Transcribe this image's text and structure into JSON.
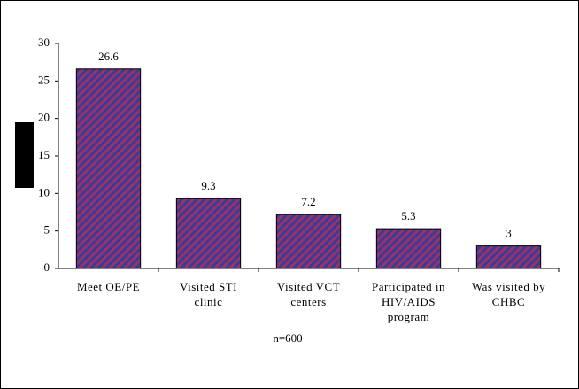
{
  "chart_data": {
    "type": "bar",
    "categories": [
      "Meet OE/PE",
      "Visited STI clinic",
      "Visited VCT centers",
      "Participated in HIV/AIDS program",
      "Was visited by CHBC"
    ],
    "values": [
      26.6,
      9.3,
      7.2,
      5.3,
      3
    ],
    "color": "#993366",
    "stripe_color": "#3a3a9a",
    "ylim": [
      0,
      30
    ],
    "yticks": [
      0,
      5,
      10,
      15,
      20,
      25,
      30
    ],
    "grid": false,
    "annotation": "n=600"
  }
}
